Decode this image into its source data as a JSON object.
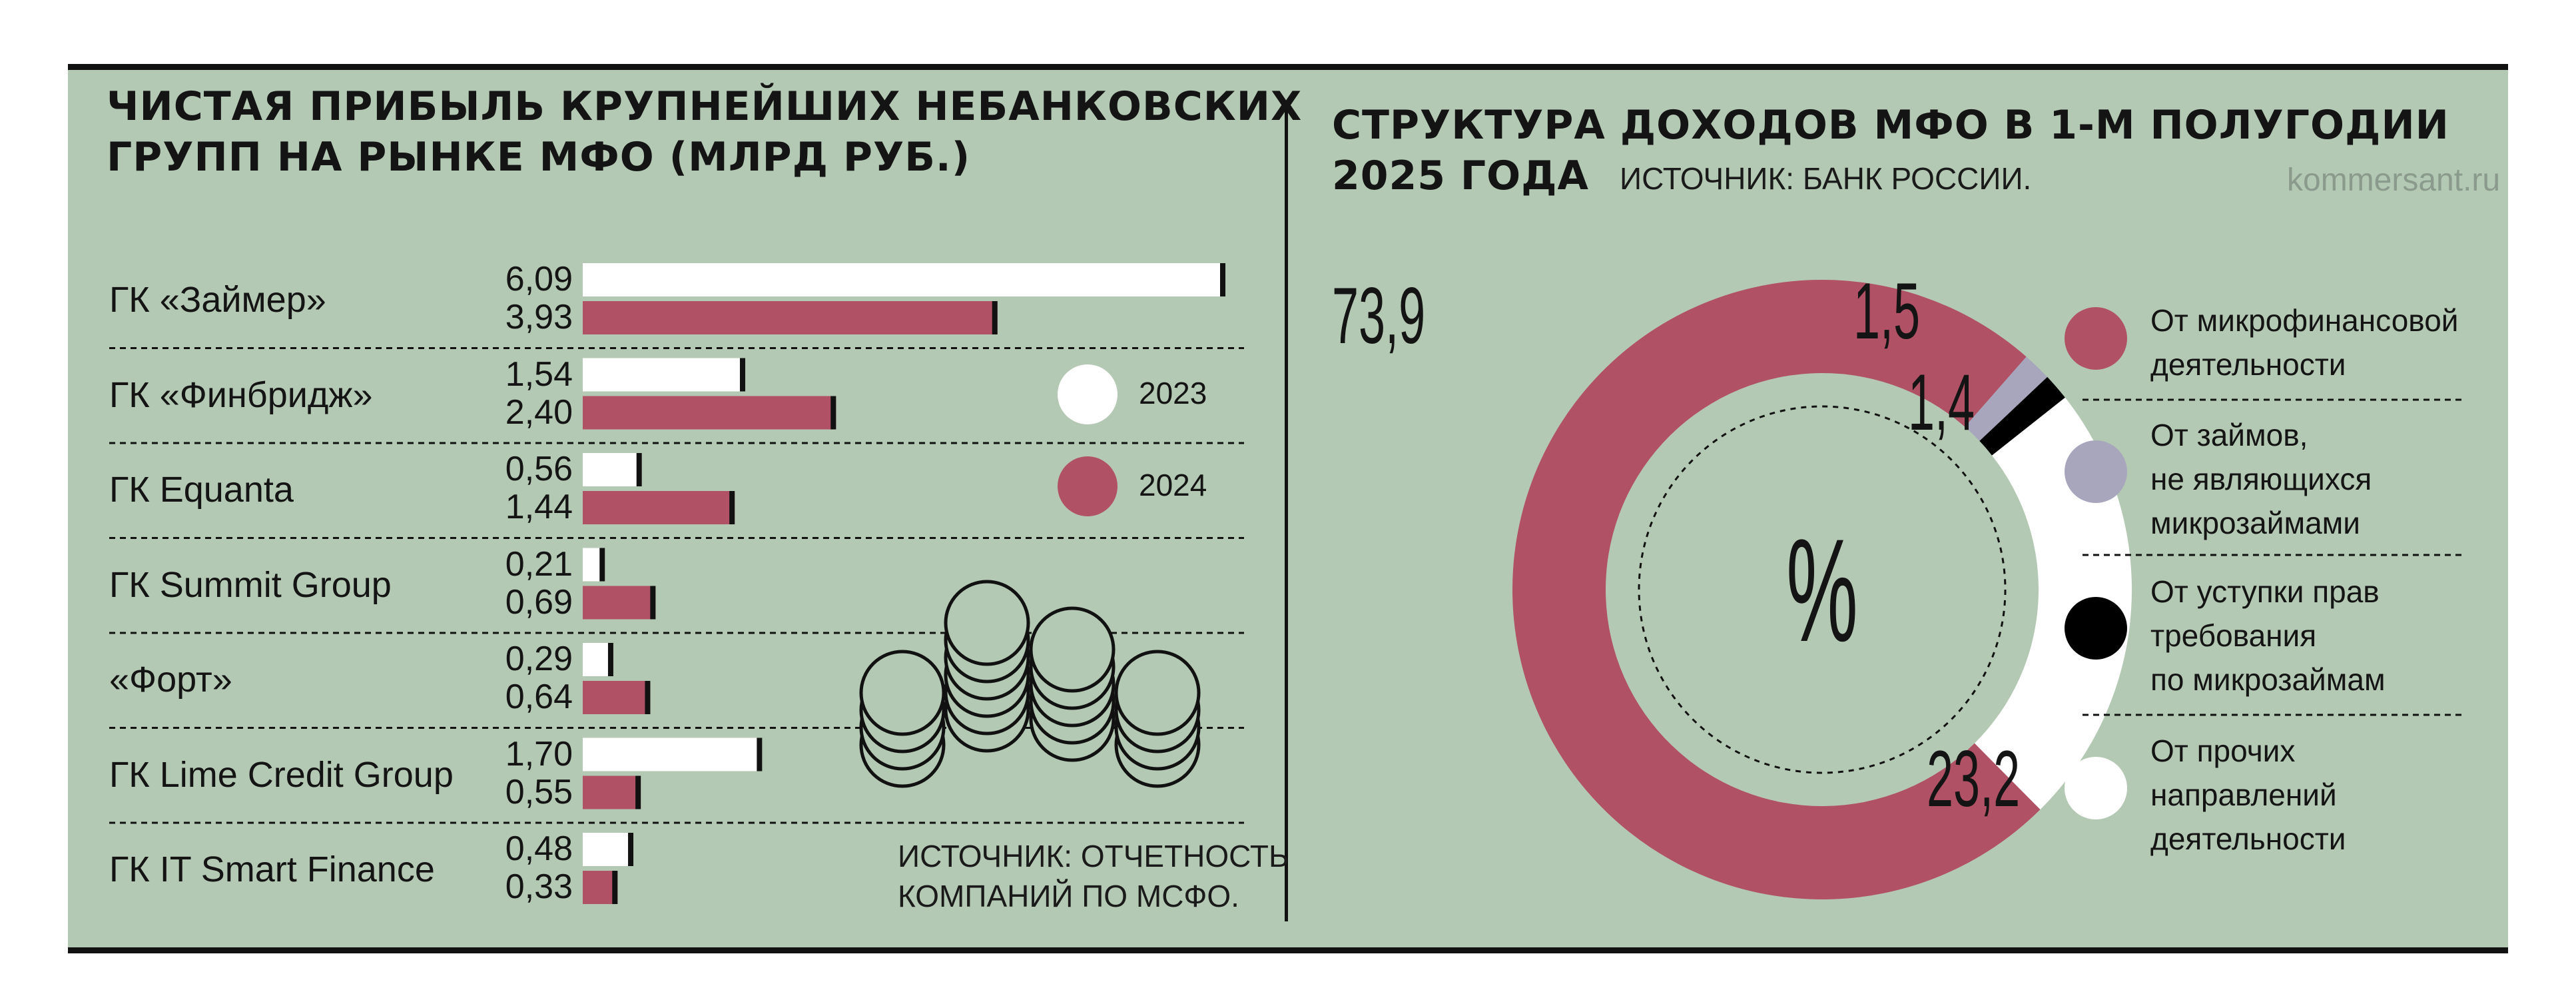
{
  "left": {
    "title_line1": "ЧИСТАЯ ПРИБЫЛЬ КРУПНЕЙШИХ НЕБАНКОВСКИХ",
    "title_line2": "ГРУПП НА РЫНКЕ МФО (МЛРД РУБ.)",
    "source_line1": "ИСТОЧНИК: ОТЧЕТНОСТЬ",
    "source_line2": "КОМПАНИЙ ПО МСФО.",
    "legend": [
      {
        "label": "2023",
        "color": "#ffffff"
      },
      {
        "label": "2024",
        "color": "#b15165"
      }
    ]
  },
  "right": {
    "title_line1": "СТРУКТУРА ДОХОДОВ МФО В 1-М ПОЛУГОДИИ",
    "title_line2": "2025 ГОДА",
    "source": "ИСТОЧНИК: БАНК РОССИИ.",
    "watermark": "kommersant.ru",
    "center_symbol": "%",
    "legend": [
      {
        "text": "От микрофинансовой\nдеятельности",
        "color": "#b15165"
      },
      {
        "text": "От займов,\nне являющихся\nмикрозаймами",
        "color": "#a7a6bd"
      },
      {
        "text": "От уступки прав\nтребования\nпо микрозаймам",
        "color": "#000000"
      },
      {
        "text": "От прочих\nнаправлений\nдеятельности",
        "color": "#ffffff"
      }
    ]
  },
  "chart_data": [
    {
      "type": "bar",
      "orientation": "horizontal",
      "title": "ЧИСТАЯ ПРИБЫЛЬ КРУПНЕЙШИХ НЕБАНКОВСКИХ ГРУПП НА РЫНКЕ МФО (МЛРД РУБ.)",
      "categories": [
        "ГК «Займер»",
        "ГК «Финбридж»",
        "ГК Equanta",
        "ГК Summit Group",
        "«Форт»",
        "ГК Lime Credit Group",
        "ГК IT Smart Finance"
      ],
      "series": [
        {
          "name": "2023",
          "color": "#ffffff",
          "values": [
            6.09,
            1.54,
            0.56,
            0.21,
            0.29,
            1.7,
            0.48
          ],
          "labels": [
            "6,09",
            "1,54",
            "0,56",
            "0,21",
            "0,29",
            "1,70",
            "0,48"
          ]
        },
        {
          "name": "2024",
          "color": "#b15165",
          "values": [
            3.93,
            2.4,
            1.44,
            0.69,
            0.64,
            0.55,
            0.33
          ],
          "labels": [
            "3,93",
            "2,40",
            "1,44",
            "0,69",
            "0,64",
            "0,55",
            "0,33"
          ]
        }
      ],
      "xlim": [
        0,
        6.09
      ],
      "grid": false,
      "legend": "right"
    },
    {
      "type": "pie",
      "donut": true,
      "title": "СТРУКТУРА ДОХОДОВ МФО В 1-М ПОЛУГОДИИ 2025 ГОДА",
      "unit": "%",
      "slices": [
        {
          "name": "От микрофинансовой деятельности",
          "value": 73.9,
          "label": "73,9",
          "color": "#b15165"
        },
        {
          "name": "От займов, не являющихся микрозаймами",
          "value": 1.5,
          "label": "1,5",
          "color": "#a7a6bd"
        },
        {
          "name": "От уступки прав требования по микрозаймам",
          "value": 1.4,
          "label": "1,4",
          "color": "#000000"
        },
        {
          "name": "От прочих направлений деятельности",
          "value": 23.2,
          "label": "23,2",
          "color": "#ffffff"
        }
      ],
      "legend": "right"
    }
  ]
}
